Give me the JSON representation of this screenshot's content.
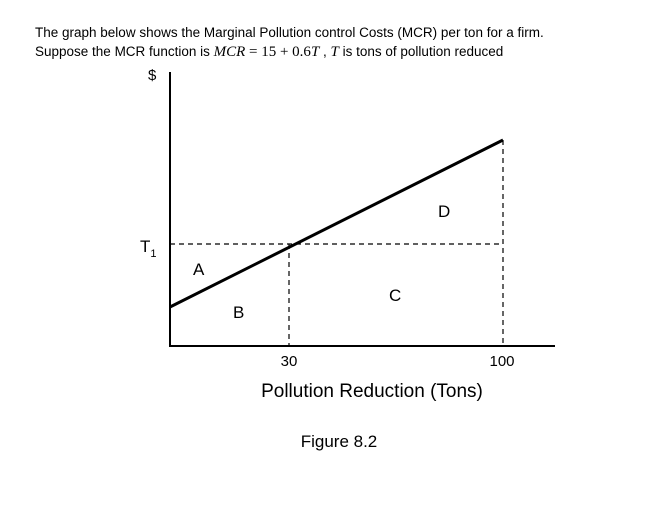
{
  "question": {
    "line1": "The graph below shows the Marginal Pollution control Costs (MCR) per ton for a firm.",
    "line2_prefix": "Suppose the MCR function is ",
    "line2_formula_lhs": "MCR",
    "line2_formula_eq": " = 15 + 0.6",
    "line2_formula_var": "T",
    "line2_sep": " , ",
    "line2_var": "T",
    "line2_suffix": " is tons of pollution reduced"
  },
  "diagram": {
    "y_axis_label": "$",
    "t1_main": "T",
    "t1_sub": "1",
    "region_a": "A",
    "region_b": "B",
    "region_c": "C",
    "region_d": "D",
    "x_tick_30": "30",
    "x_tick_100": "100",
    "x_axis_label": "Pollution Reduction (Tons)",
    "caption": "Figure 8.2"
  },
  "colors": {
    "ink": "#000000",
    "background": "#ffffff"
  }
}
